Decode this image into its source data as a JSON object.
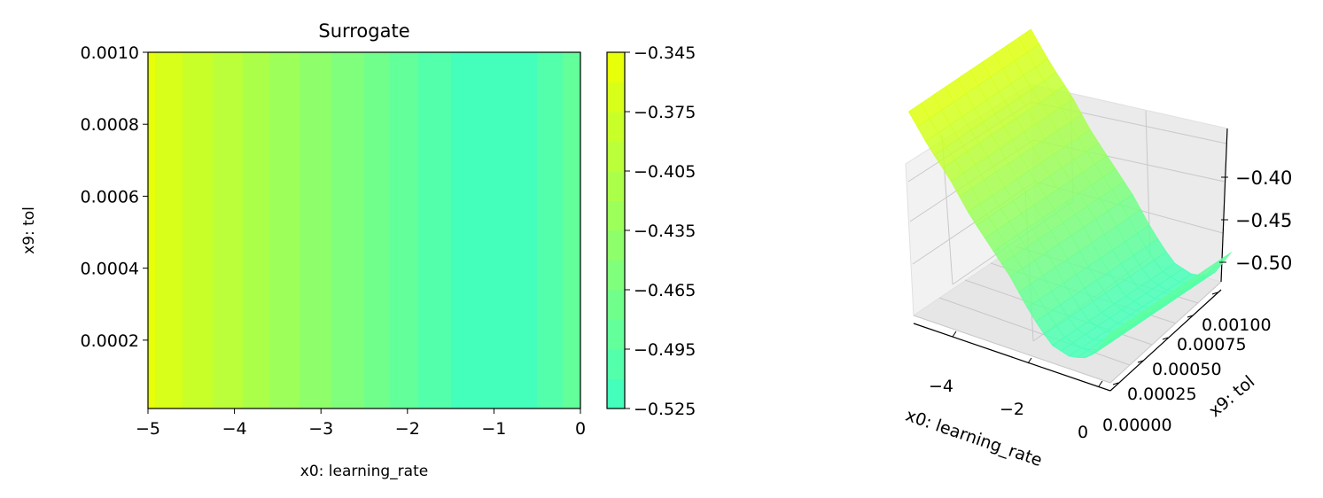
{
  "chart_data": [
    {
      "type": "heatmap",
      "title": "Surrogate",
      "xlabel": "x0: learning_rate",
      "ylabel": "x9: tol",
      "xlim": [
        -5,
        0
      ],
      "ylim": [
        1e-05,
        0.001
      ],
      "x_ticks": [
        "−5",
        "−4",
        "−3",
        "−2",
        "−1",
        "0"
      ],
      "x_tick_values": [
        -5,
        -4,
        -3,
        -2,
        -1,
        0
      ],
      "y_ticks": [
        "0.0002",
        "0.0004",
        "0.0006",
        "0.0008",
        "0.0010"
      ],
      "y_tick_values": [
        0.0002,
        0.0004,
        0.0006,
        0.0008,
        0.001
      ],
      "colorbar": {
        "ticks": [
          "−0.345",
          "−0.375",
          "−0.405",
          "−0.435",
          "−0.465",
          "−0.495",
          "−0.525"
        ],
        "tick_values": [
          -0.345,
          -0.375,
          -0.405,
          -0.435,
          -0.465,
          -0.495,
          -0.525
        ],
        "range": [
          -0.525,
          -0.345
        ],
        "levels": [
          -0.525,
          -0.51,
          -0.495,
          -0.48,
          -0.465,
          -0.45,
          -0.435,
          -0.42,
          -0.405,
          -0.39,
          -0.375,
          -0.36,
          -0.345
        ]
      },
      "colormap": {
        "low": "#3dffc4",
        "high": "#eeff00"
      },
      "profile_x": [
        -5,
        -4.5,
        -4,
        -3.5,
        -3,
        -2.5,
        -2,
        -1.5,
        -1,
        -0.5,
        0
      ],
      "profile_value": [
        -0.356,
        -0.38,
        -0.4,
        -0.425,
        -0.445,
        -0.465,
        -0.49,
        -0.51,
        -0.515,
        -0.51,
        -0.485
      ],
      "note_value_varies_only_with_x": true
    },
    {
      "type": "surface",
      "xlabel": "x0: learning_rate",
      "ylabel": "x9: tol",
      "x_ticks": [
        "−4",
        "−2",
        "0"
      ],
      "y_ticks": [
        "0.00000",
        "0.00025",
        "0.00050",
        "0.00075",
        "0.00100"
      ],
      "z_ticks": [
        "−0.40",
        "−0.45",
        "−0.50"
      ],
      "xlim": [
        -5,
        0
      ],
      "ylim": [
        0,
        0.001
      ],
      "zlim": [
        -0.525,
        -0.345
      ]
    }
  ]
}
